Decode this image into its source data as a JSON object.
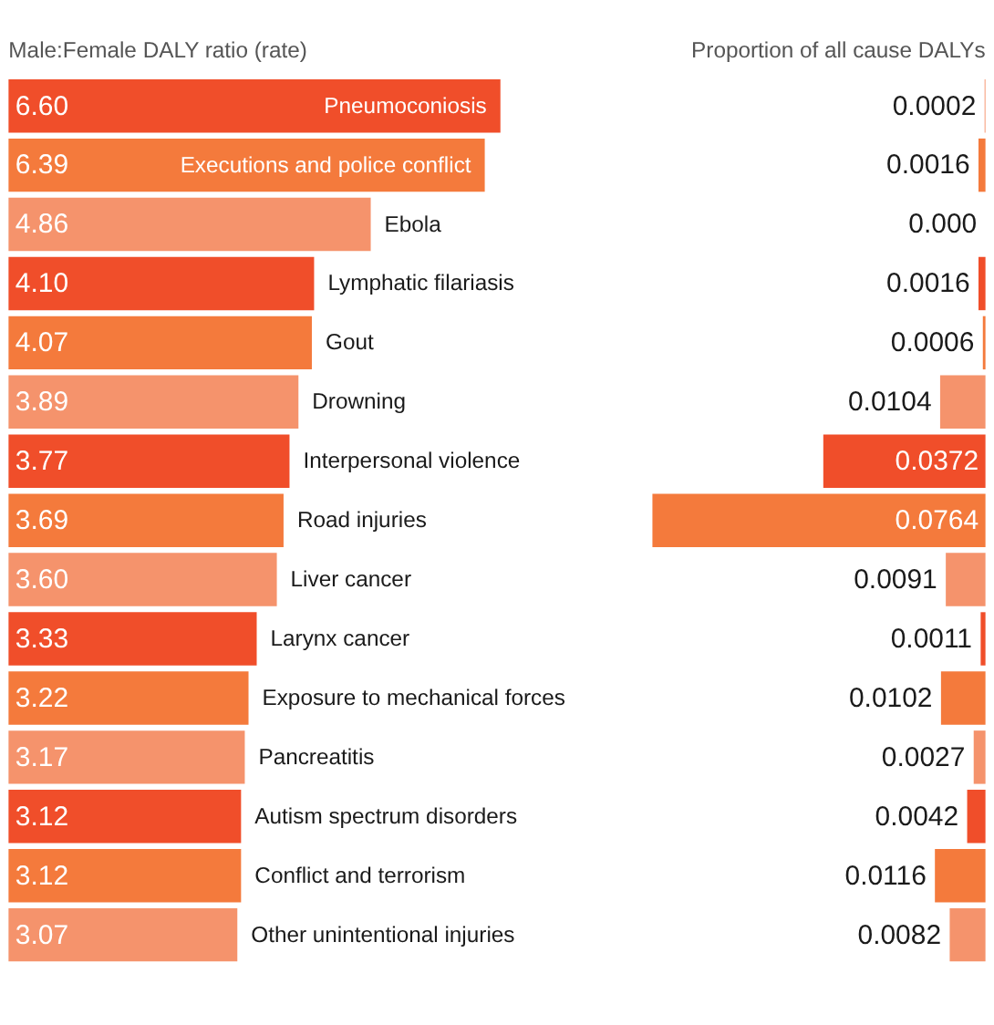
{
  "chart_data": [
    {
      "type": "bar",
      "orientation": "horizontal",
      "title": "Male:Female DALY ratio (rate)",
      "categories": [
        "Pneumoconiosis",
        "Executions and police conflict",
        "Ebola",
        "Lymphatic filariasis",
        "Gout",
        "Drowning",
        "Interpersonal violence",
        "Road injuries",
        "Liver cancer",
        "Larynx cancer",
        "Exposure to mechanical forces",
        "Pancreatitis",
        "Autism spectrum disorders",
        "Conflict and terrorism",
        "Other unintentional injuries"
      ],
      "values": [
        6.6,
        6.39,
        4.86,
        4.1,
        4.07,
        3.89,
        3.77,
        3.69,
        3.6,
        3.33,
        3.22,
        3.17,
        3.12,
        3.12,
        3.07
      ],
      "value_labels": [
        "6.60",
        "6.39",
        "4.86",
        "4.10",
        "4.07",
        "3.89",
        "3.77",
        "3.69",
        "3.60",
        "3.33",
        "3.22",
        "3.17",
        "3.12",
        "3.12",
        "3.07"
      ],
      "colors": [
        "#f04e2a",
        "#f47a3c",
        "#f5936c",
        "#f04e2a",
        "#f47a3c",
        "#f5936c",
        "#f04e2a",
        "#f47a3c",
        "#f5936c",
        "#f04e2a",
        "#f47a3c",
        "#f5936c",
        "#f04e2a",
        "#f47a3c",
        "#f5936c"
      ],
      "tick_labels": false
    },
    {
      "type": "bar",
      "orientation": "horizontal",
      "title": "Proportion of all cause DALYs",
      "categories": [
        null,
        null,
        null,
        null,
        null,
        null,
        null,
        null,
        null,
        null,
        null,
        null,
        null,
        null,
        null
      ],
      "values": [
        0.0002,
        0.0016,
        0.0,
        0.0016,
        0.0006,
        0.0104,
        0.0372,
        0.0764,
        0.0091,
        0.0011,
        0.0102,
        0.0027,
        0.0042,
        0.0116,
        0.0082
      ],
      "value_labels": [
        "0.0002",
        "0.0016",
        "0.000",
        "0.0016",
        "0.0006",
        "0.0104",
        "0.0372",
        "0.0764",
        "0.0091",
        "0.0011",
        "0.0102",
        "0.0027",
        "0.0042",
        "0.0116",
        "0.0082"
      ],
      "colors": [
        "#f5936c",
        "#f47a3c",
        "#f5936c",
        "#f04e2a",
        "#f47a3c",
        "#f5936c",
        "#f04e2a",
        "#f47a3c",
        "#f5936c",
        "#f04e2a",
        "#f47a3c",
        "#f5936c",
        "#f04e2a",
        "#f47a3c",
        "#f5936c"
      ],
      "tick_labels": false
    }
  ]
}
